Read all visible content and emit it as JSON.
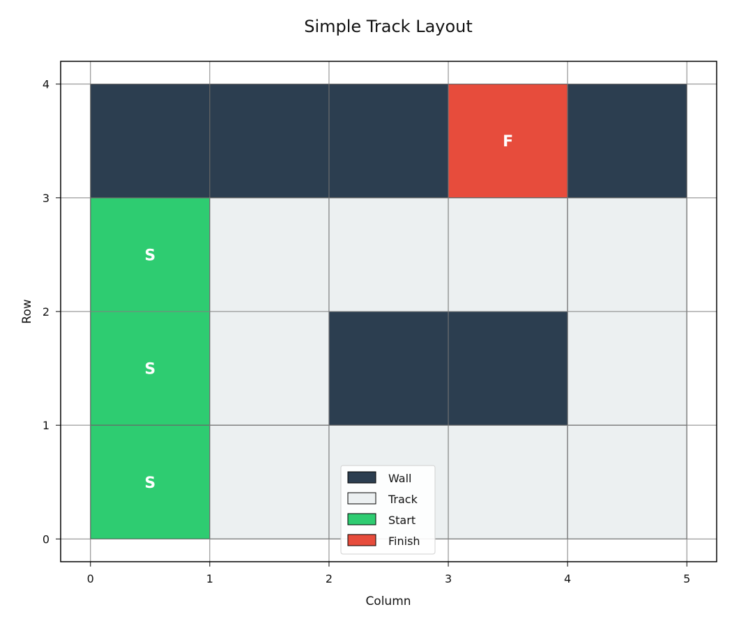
{
  "chart_data": {
    "type": "heatmap",
    "title": "Simple Track Layout",
    "xlabel": "Column",
    "ylabel": "Row",
    "xlim": [
      -0.25,
      5.25
    ],
    "ylim": [
      -0.2,
      4.2
    ],
    "x_ticks": [
      "0",
      "1",
      "2",
      "3",
      "4",
      "5"
    ],
    "y_ticks": [
      "0",
      "1",
      "2",
      "3",
      "4"
    ],
    "grid": true,
    "legend_position": "lower-center",
    "cell_types": {
      "wall": {
        "label": "Wall",
        "color": "#2c3e50"
      },
      "track": {
        "label": "Track",
        "color": "#ecf0f1"
      },
      "start": {
        "label": "Start",
        "color": "#2ecc71"
      },
      "finish": {
        "label": "Finish",
        "color": "#e74c3c"
      }
    },
    "legend": [
      "Wall",
      "Track",
      "Start",
      "Finish"
    ],
    "rows_top_to_bottom": [
      [
        "wall",
        "wall",
        "wall",
        "finish",
        "wall"
      ],
      [
        "start",
        "track",
        "track",
        "track",
        "track"
      ],
      [
        "start",
        "track",
        "wall",
        "wall",
        "track"
      ],
      [
        "start",
        "track",
        "track",
        "track",
        "track"
      ]
    ],
    "cell_letters": {
      "start": "S",
      "finish": "F"
    }
  }
}
